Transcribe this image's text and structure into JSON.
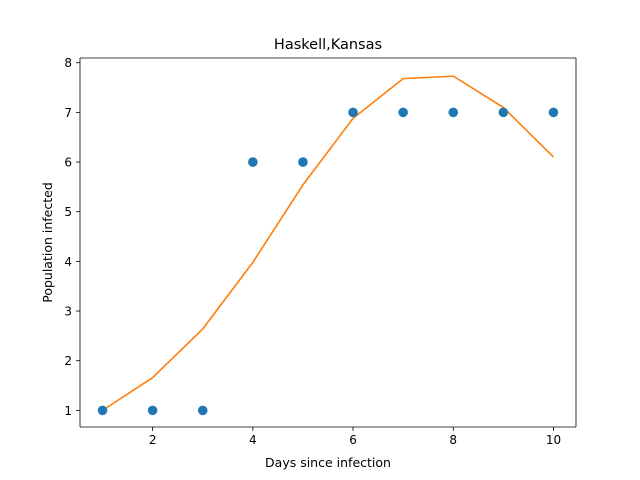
{
  "chart_data": {
    "type": "scatter",
    "title": "Haskell,Kansas",
    "xlabel": "Days since infection",
    "ylabel": "Population infected",
    "xlim": [
      0.55,
      10.45
    ],
    "ylim": [
      0.665,
      8.095
    ],
    "x_ticks": [
      2,
      4,
      6,
      8,
      10
    ],
    "y_ticks": [
      1,
      2,
      3,
      4,
      5,
      6,
      7,
      8
    ],
    "grid": false,
    "series": [
      {
        "kind": "scatter",
        "color": "#1f77b4",
        "x": [
          1,
          2,
          3,
          4,
          5,
          6,
          7,
          8,
          9,
          10
        ],
        "y": [
          1,
          1,
          1,
          6,
          6,
          7,
          7,
          7,
          7,
          7
        ]
      },
      {
        "kind": "line",
        "color": "#ff7f0e",
        "x": [
          1,
          2,
          3,
          4,
          5,
          6,
          7,
          8,
          9,
          10
        ],
        "y": [
          1.0,
          1.66,
          2.64,
          3.98,
          5.54,
          6.88,
          7.68,
          7.73,
          7.1,
          6.1
        ]
      }
    ]
  }
}
